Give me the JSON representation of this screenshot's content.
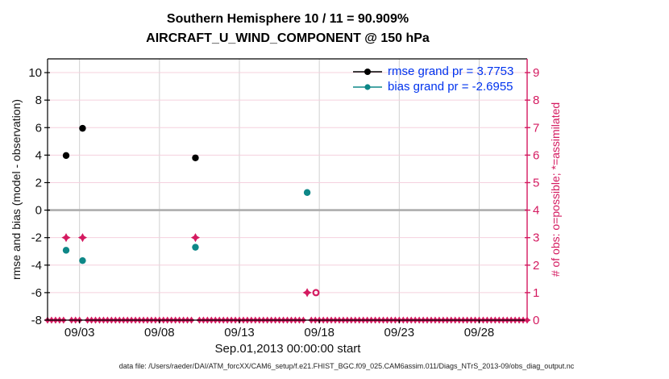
{
  "figure": {
    "title_line1": "Southern Hemisphere 10 / 11 = 90.909%",
    "title_line2": "AIRCRAFT_U_WIND_COMPONENT @ 150 hPa",
    "footer": "data file: /Users/raeder/DAI/ATM_forcXX/CAM6_setup/f.e21.FHIST_BGC.f09_025.CAM6assim.011/Diags_NTrS_2013-09/obs_diag_output.nc"
  },
  "legend": {
    "rmse_label": "rmse grand pr = 3.7753",
    "bias_label": "bias grand pr = -2.6955"
  },
  "chart_data": {
    "type": "scatter",
    "title": "Southern Hemisphere 10 / 11 = 90.909%",
    "subtitle": "AIRCRAFT_U_WIND_COMPONENT @ 150 hPa",
    "xlabel": "Sep.01,2013 00:00:00 start",
    "ylabel_left": "rmse and bias (model - observation)",
    "ylabel_right": "# of obs: o=possible; *=assimilated",
    "x_axis": {
      "lim_days": [
        1,
        31
      ],
      "ticks": [
        {
          "day": 3,
          "label": "09/03"
        },
        {
          "day": 8,
          "label": "09/08"
        },
        {
          "day": 13,
          "label": "09/13"
        },
        {
          "day": 18,
          "label": "09/18"
        },
        {
          "day": 23,
          "label": "09/23"
        },
        {
          "day": 28,
          "label": "09/28"
        }
      ]
    },
    "y_left": {
      "lim": [
        -8,
        11
      ],
      "ticks": [
        10,
        8,
        6,
        4,
        2,
        0,
        -2,
        -4,
        -6,
        -8
      ]
    },
    "y_right": {
      "lim": [
        0,
        9.5
      ],
      "ticks": [
        9,
        8,
        7,
        6,
        5,
        4,
        3,
        2,
        1,
        0
      ]
    },
    "series": {
      "rmse": {
        "grand_pr": 3.7753,
        "marker": "filled-circle",
        "points": [
          {
            "day": 2.16,
            "value": 3.97
          },
          {
            "day": 3.19,
            "value": 5.95
          },
          {
            "day": 10.25,
            "value": 3.8
          }
        ]
      },
      "bias": {
        "grand_pr": -2.6955,
        "marker": "filled-circle",
        "points": [
          {
            "day": 2.16,
            "value": -2.92
          },
          {
            "day": 3.19,
            "value": -3.67
          },
          {
            "day": 10.25,
            "value": -2.7
          },
          {
            "day": 17.24,
            "value": 1.28
          }
        ]
      },
      "assimilated": {
        "axis": "right",
        "marker": "star",
        "points": [
          {
            "day": 2.16,
            "count": 3
          },
          {
            "day": 3.19,
            "count": 3
          },
          {
            "day": 10.25,
            "count": 3
          },
          {
            "day": 17.24,
            "count": 1
          },
          {
            "day": 17.79,
            "count": 0
          }
        ]
      },
      "possible": {
        "axis": "right",
        "marker": "open-circle",
        "points": [
          {
            "day": 2.16,
            "count": 3
          },
          {
            "day": 3.19,
            "count": 3
          },
          {
            "day": 10.25,
            "count": 3
          },
          {
            "day": 17.24,
            "count": 1
          },
          {
            "day": 17.79,
            "count": 1
          }
        ]
      }
    },
    "zero_obs_row": {
      "axis": "right",
      "value": 0,
      "step_days": 0.25,
      "range_days": [
        1,
        31
      ],
      "gap_days": [
        2.25,
        3.25,
        10.25,
        17.25
      ]
    },
    "colors": {
      "rmse": "#000000",
      "bias": "#0e8787",
      "obs_pink": "#d41a60",
      "grid_pink": "#f5d0de",
      "grid_gray": "#d0d0d0",
      "zero_line": "#adadad",
      "legend_text": "#0033ee",
      "axis_text": "#111111"
    }
  }
}
